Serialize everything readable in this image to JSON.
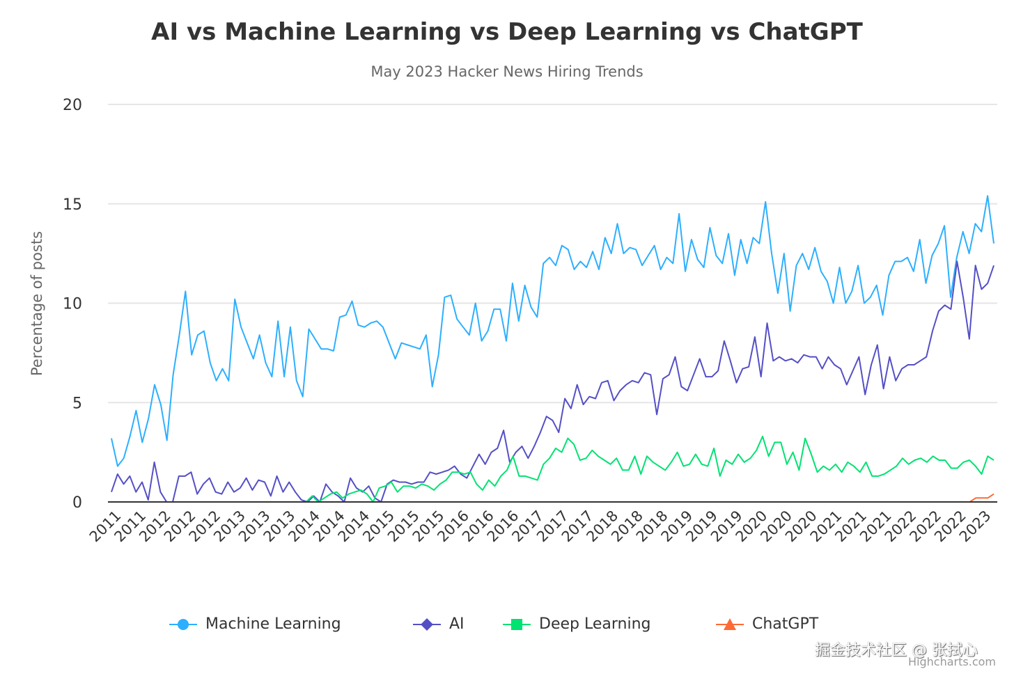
{
  "chart_data": {
    "type": "line",
    "title": "AI vs Machine Learning vs Deep Learning vs ChatGPT",
    "subtitle": "May 2023 Hacker News Hiring Trends",
    "xlabel": "",
    "ylabel": "Percentage of posts",
    "ylim": [
      0,
      20
    ],
    "yticks": [
      "0",
      "5",
      "10",
      "15",
      "20"
    ],
    "grid": true,
    "legend_position": "bottom",
    "x_tick_labels": [
      "2011",
      "2011",
      "2012",
      "2012",
      "2012",
      "2013",
      "2013",
      "2013",
      "2014",
      "2014",
      "2014",
      "2015",
      "2015",
      "2015",
      "2016",
      "2016",
      "2016",
      "2017",
      "2017",
      "2017",
      "2018",
      "2018",
      "2018",
      "2019",
      "2019",
      "2019",
      "2020",
      "2020",
      "2020",
      "2021",
      "2021",
      "2021",
      "2022",
      "2022",
      "2022",
      "2023"
    ],
    "series": [
      {
        "name": "Machine Learning",
        "color": "#2caffe",
        "marker": "circle",
        "values": [
          3.2,
          1.8,
          2.2,
          3.3,
          4.6,
          3.0,
          4.2,
          5.9,
          4.9,
          3.1,
          6.4,
          8.4,
          10.6,
          7.4,
          8.4,
          8.6,
          7.0,
          6.1,
          6.7,
          6.1,
          10.2,
          8.8,
          8.0,
          7.2,
          8.4,
          7.0,
          6.3,
          9.1,
          6.3,
          8.8,
          6.1,
          5.3,
          8.7,
          8.2,
          7.7,
          7.7,
          7.6,
          9.3,
          9.4,
          10.1,
          8.9,
          8.8,
          9.0,
          9.1,
          8.8,
          8.0,
          7.2,
          8.0,
          7.9,
          7.8,
          7.7,
          8.4,
          5.8,
          7.4,
          10.3,
          10.4,
          9.2,
          8.8,
          8.4,
          10.0,
          8.1,
          8.6,
          9.7,
          9.7,
          8.1,
          11.0,
          9.1,
          10.9,
          9.8,
          9.3,
          12.0,
          12.3,
          11.9,
          12.9,
          12.7,
          11.7,
          12.1,
          11.8,
          12.6,
          11.7,
          13.3,
          12.5,
          14.0,
          12.5,
          12.8,
          12.7,
          11.9,
          12.4,
          12.9,
          11.7,
          12.3,
          12.0,
          14.5,
          11.6,
          13.2,
          12.2,
          11.8,
          13.8,
          12.4,
          12.0,
          13.5,
          11.4,
          13.2,
          12.0,
          13.3,
          13.0,
          15.1,
          12.5,
          10.5,
          12.5,
          9.6,
          11.9,
          12.5,
          11.7,
          12.8,
          11.6,
          11.1,
          10.0,
          11.8,
          10.0,
          10.6,
          11.9,
          10.0,
          10.3,
          10.9,
          9.4,
          11.4,
          12.1,
          12.1,
          12.3,
          11.6,
          13.2,
          11.0,
          12.4,
          13.0,
          13.9,
          10.3,
          12.3,
          13.6,
          12.5,
          14.0,
          13.6,
          15.4,
          13.0
        ]
      },
      {
        "name": "AI",
        "color": "#544fc5",
        "marker": "diamond",
        "values": [
          0.5,
          1.4,
          0.9,
          1.3,
          0.5,
          1.0,
          0.1,
          2.0,
          0.5,
          0.0,
          0.0,
          1.3,
          1.3,
          1.5,
          0.4,
          0.9,
          1.2,
          0.5,
          0.4,
          1.0,
          0.5,
          0.7,
          1.2,
          0.6,
          1.1,
          1.0,
          0.3,
          1.3,
          0.5,
          1.0,
          0.5,
          0.1,
          0.0,
          0.3,
          0.0,
          0.9,
          0.5,
          0.3,
          0.0,
          1.2,
          0.7,
          0.5,
          0.8,
          0.2,
          0.0,
          0.9,
          1.1,
          1.0,
          1.0,
          0.9,
          1.0,
          1.0,
          1.5,
          1.4,
          1.5,
          1.6,
          1.8,
          1.4,
          1.2,
          1.8,
          2.4,
          1.9,
          2.5,
          2.7,
          3.6,
          2.0,
          2.5,
          2.8,
          2.2,
          2.8,
          3.5,
          4.3,
          4.1,
          3.5,
          5.2,
          4.7,
          5.9,
          4.9,
          5.3,
          5.2,
          6.0,
          6.1,
          5.1,
          5.6,
          5.9,
          6.1,
          6.0,
          6.5,
          6.4,
          4.4,
          6.2,
          6.4,
          7.3,
          5.8,
          5.6,
          6.4,
          7.2,
          6.3,
          6.3,
          6.6,
          8.1,
          7.1,
          6.0,
          6.7,
          6.8,
          8.3,
          6.3,
          9.0,
          7.1,
          7.3,
          7.1,
          7.2,
          7.0,
          7.4,
          7.3,
          7.3,
          6.7,
          7.3,
          6.9,
          6.7,
          5.9,
          6.6,
          7.3,
          5.4,
          6.9,
          7.9,
          5.7,
          7.3,
          6.1,
          6.7,
          6.9,
          6.9,
          7.1,
          7.3,
          8.6,
          9.6,
          9.9,
          9.7,
          12.1,
          10.3,
          8.2,
          11.9,
          10.7,
          11.0,
          11.9
        ]
      },
      {
        "name": "Deep Learning",
        "color": "#00e272",
        "marker": "square",
        "values": [
          0,
          0,
          0,
          0,
          0,
          0,
          0,
          0,
          0,
          0,
          0,
          0,
          0,
          0,
          0,
          0,
          0,
          0,
          0,
          0,
          0,
          0,
          0,
          0,
          0,
          0,
          0,
          0,
          0,
          0,
          0,
          0,
          0,
          0.3,
          0,
          0.2,
          0.4,
          0.5,
          0.2,
          0.4,
          0.5,
          0.6,
          0.4,
          0.0,
          0.7,
          0.8,
          1.0,
          0.5,
          0.8,
          0.8,
          0.7,
          0.9,
          0.8,
          0.6,
          0.9,
          1.1,
          1.5,
          1.5,
          1.4,
          1.5,
          0.9,
          0.6,
          1.1,
          0.8,
          1.3,
          1.6,
          2.3,
          1.3,
          1.3,
          1.2,
          1.1,
          1.9,
          2.2,
          2.7,
          2.5,
          3.2,
          2.9,
          2.1,
          2.2,
          2.6,
          2.3,
          2.1,
          1.9,
          2.2,
          1.6,
          1.6,
          2.3,
          1.4,
          2.3,
          2.0,
          1.8,
          1.6,
          2.0,
          2.5,
          1.8,
          1.9,
          2.4,
          1.9,
          1.8,
          2.7,
          1.3,
          2.1,
          1.9,
          2.4,
          2.0,
          2.2,
          2.6,
          3.3,
          2.3,
          3.0,
          3.0,
          1.9,
          2.5,
          1.6,
          3.2,
          2.4,
          1.5,
          1.8,
          1.6,
          1.9,
          1.5,
          2.0,
          1.8,
          1.5,
          2.0,
          1.3,
          1.3,
          1.4,
          1.6,
          1.8,
          2.2,
          1.9,
          2.1,
          2.2,
          2.0,
          2.3,
          2.1,
          2.1,
          1.7,
          1.7,
          2.0,
          2.1,
          1.8,
          1.4,
          2.3,
          2.1
        ]
      },
      {
        "name": "ChatGPT",
        "color": "#fe6a35",
        "marker": "triangle",
        "values": [
          0,
          0,
          0,
          0,
          0,
          0,
          0,
          0,
          0,
          0,
          0,
          0,
          0,
          0,
          0,
          0,
          0,
          0,
          0,
          0,
          0,
          0,
          0,
          0,
          0,
          0,
          0,
          0,
          0,
          0,
          0,
          0,
          0,
          0,
          0,
          0,
          0,
          0,
          0,
          0,
          0,
          0,
          0,
          0,
          0,
          0,
          0,
          0,
          0,
          0,
          0,
          0,
          0,
          0,
          0,
          0,
          0,
          0,
          0,
          0,
          0,
          0,
          0,
          0,
          0,
          0,
          0,
          0,
          0,
          0,
          0,
          0,
          0,
          0,
          0,
          0,
          0,
          0,
          0,
          0,
          0,
          0,
          0,
          0,
          0,
          0,
          0,
          0,
          0,
          0,
          0,
          0,
          0,
          0,
          0,
          0,
          0,
          0,
          0,
          0,
          0,
          0,
          0,
          0,
          0,
          0,
          0,
          0,
          0,
          0,
          0,
          0,
          0,
          0,
          0,
          0,
          0,
          0,
          0,
          0,
          0,
          0,
          0,
          0,
          0,
          0,
          0,
          0,
          0,
          0,
          0,
          0,
          0,
          0,
          0,
          0,
          0,
          0,
          0,
          0,
          0,
          0,
          0,
          0,
          0.2,
          0.2,
          0.2,
          0.4
        ]
      }
    ]
  },
  "legend": {
    "items": [
      {
        "label": "Machine Learning",
        "icon": "circle-marker"
      },
      {
        "label": "AI",
        "icon": "diamond-marker"
      },
      {
        "label": "Deep Learning",
        "icon": "square-marker"
      },
      {
        "label": "ChatGPT",
        "icon": "triangle-marker"
      }
    ]
  },
  "watermark": "掘金技术社区 @ 张拭心",
  "credits": "Highcharts.com"
}
